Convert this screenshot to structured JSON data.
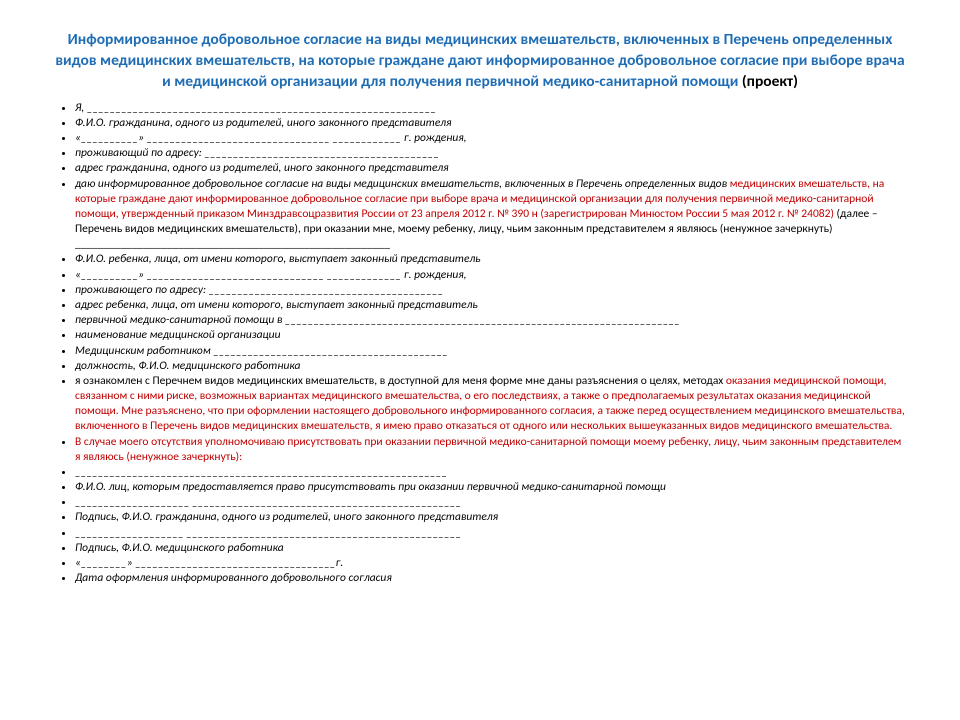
{
  "title": {
    "blue": "Информированное добровольное согласие на виды медицинских вмешательств, включенных в Перечень определенных видов медицинских вмешательств, на которые граждане дают информированное добровольное согласие при выборе врача и медицинской организации для получения первичной медико-санитарной помощи",
    "black": " (проект)"
  },
  "li1": "Я, _____________________________________________________________",
  "li2": "Ф.И.О. гражданина, одного из родителей, иного законного представителя",
  "li3": "«__________» ________________________________ ____________ г. рождения,",
  "li4": "проживающий по адресу: _________________________________________",
  "li5": "адрес гражданина, одного из родителей, иного законного представителя",
  "li6a": "даю информированное добровольное согласие на виды медицинских вмешательств, включенных в Перечень определенных видов ",
  "li6b": "медицинских вмешательств, на которые граждане дают информированное добровольное согласие при выборе врача и медицинской организации для получения первичной медико-санитарной помощи, утвержденный приказом Минздравсоцразвития России от 23 апреля 2012 г.     № 390 н (зарегистрирован Минюстом России 5 мая 2012 г. № 24082) ",
  "li6c": "(далее – Перечень видов медицинских вмешательств), при оказании мне, моему ребенку, лицу, чьим законным представителем я являюсь (ненужное зачеркнуть) _______________________________________________________",
  "li7": "Ф.И.О. ребенка, лица, от имени которого, выступает законный представитель",
  "li8": "«__________» _______________________________ _____________ г. рождения,",
  "li9": "проживающего по адресу: _________________________________________",
  "li10": "адрес ребенка, лица, от имени которого, выступает законный представитель",
  "li11": "первичной медико-санитарной помощи в _____________________________________________________________________",
  "li12": "наименование медицинской организации",
  "li13": "Медицинским работником _________________________________________",
  "li14": "должность, Ф.И.О. медицинского работника",
  "li15a": "я ознакомлен с Перечнем видов медицинских вмешательств, в доступной для меня форме мне даны разъяснения о целях, методах ",
  "li15b": "оказания медицинской помощи, связанном с ними риске, возможных вариантах медицинского вмешательства, о его последствиях, а также о предполагаемых результатах оказания медицинской помощи. Мне разъяснено, что при оформлении настоящего добровольного информированного согласия, а также перед осуществлением медицинского вмешательства, включенного в Перечень видов медицинских вмешательств, я имею право отказаться от одного или нескольких вышеуказанных видов медицинского вмешательства.",
  "li16": "В случае моего отсутствия уполномочиваю присутствовать при оказании первичной медико-санитарной помощи моему ребенку, лицу, чьим законным представителем я являюсь (ненужное зачеркнуть):",
  "li17": "_________________________________________________________________",
  "li18": "Ф.И.О. лиц, которым предоставляется право присутствовать  при оказании первичной медико-санитарной помощи",
  "li19": "____________________ _______________________________________________",
  "li20": "Подпись,                                Ф.И.О. гражданина, одного из родителей, иного законного представителя",
  "li21": "___________________ ________________________________________________",
  "li22": "Подпись,                                                  Ф.И.О. медицинского работника",
  "li23": "«________» ___________________________________г.",
  "li24": "Дата оформления информированного добровольного согласия"
}
